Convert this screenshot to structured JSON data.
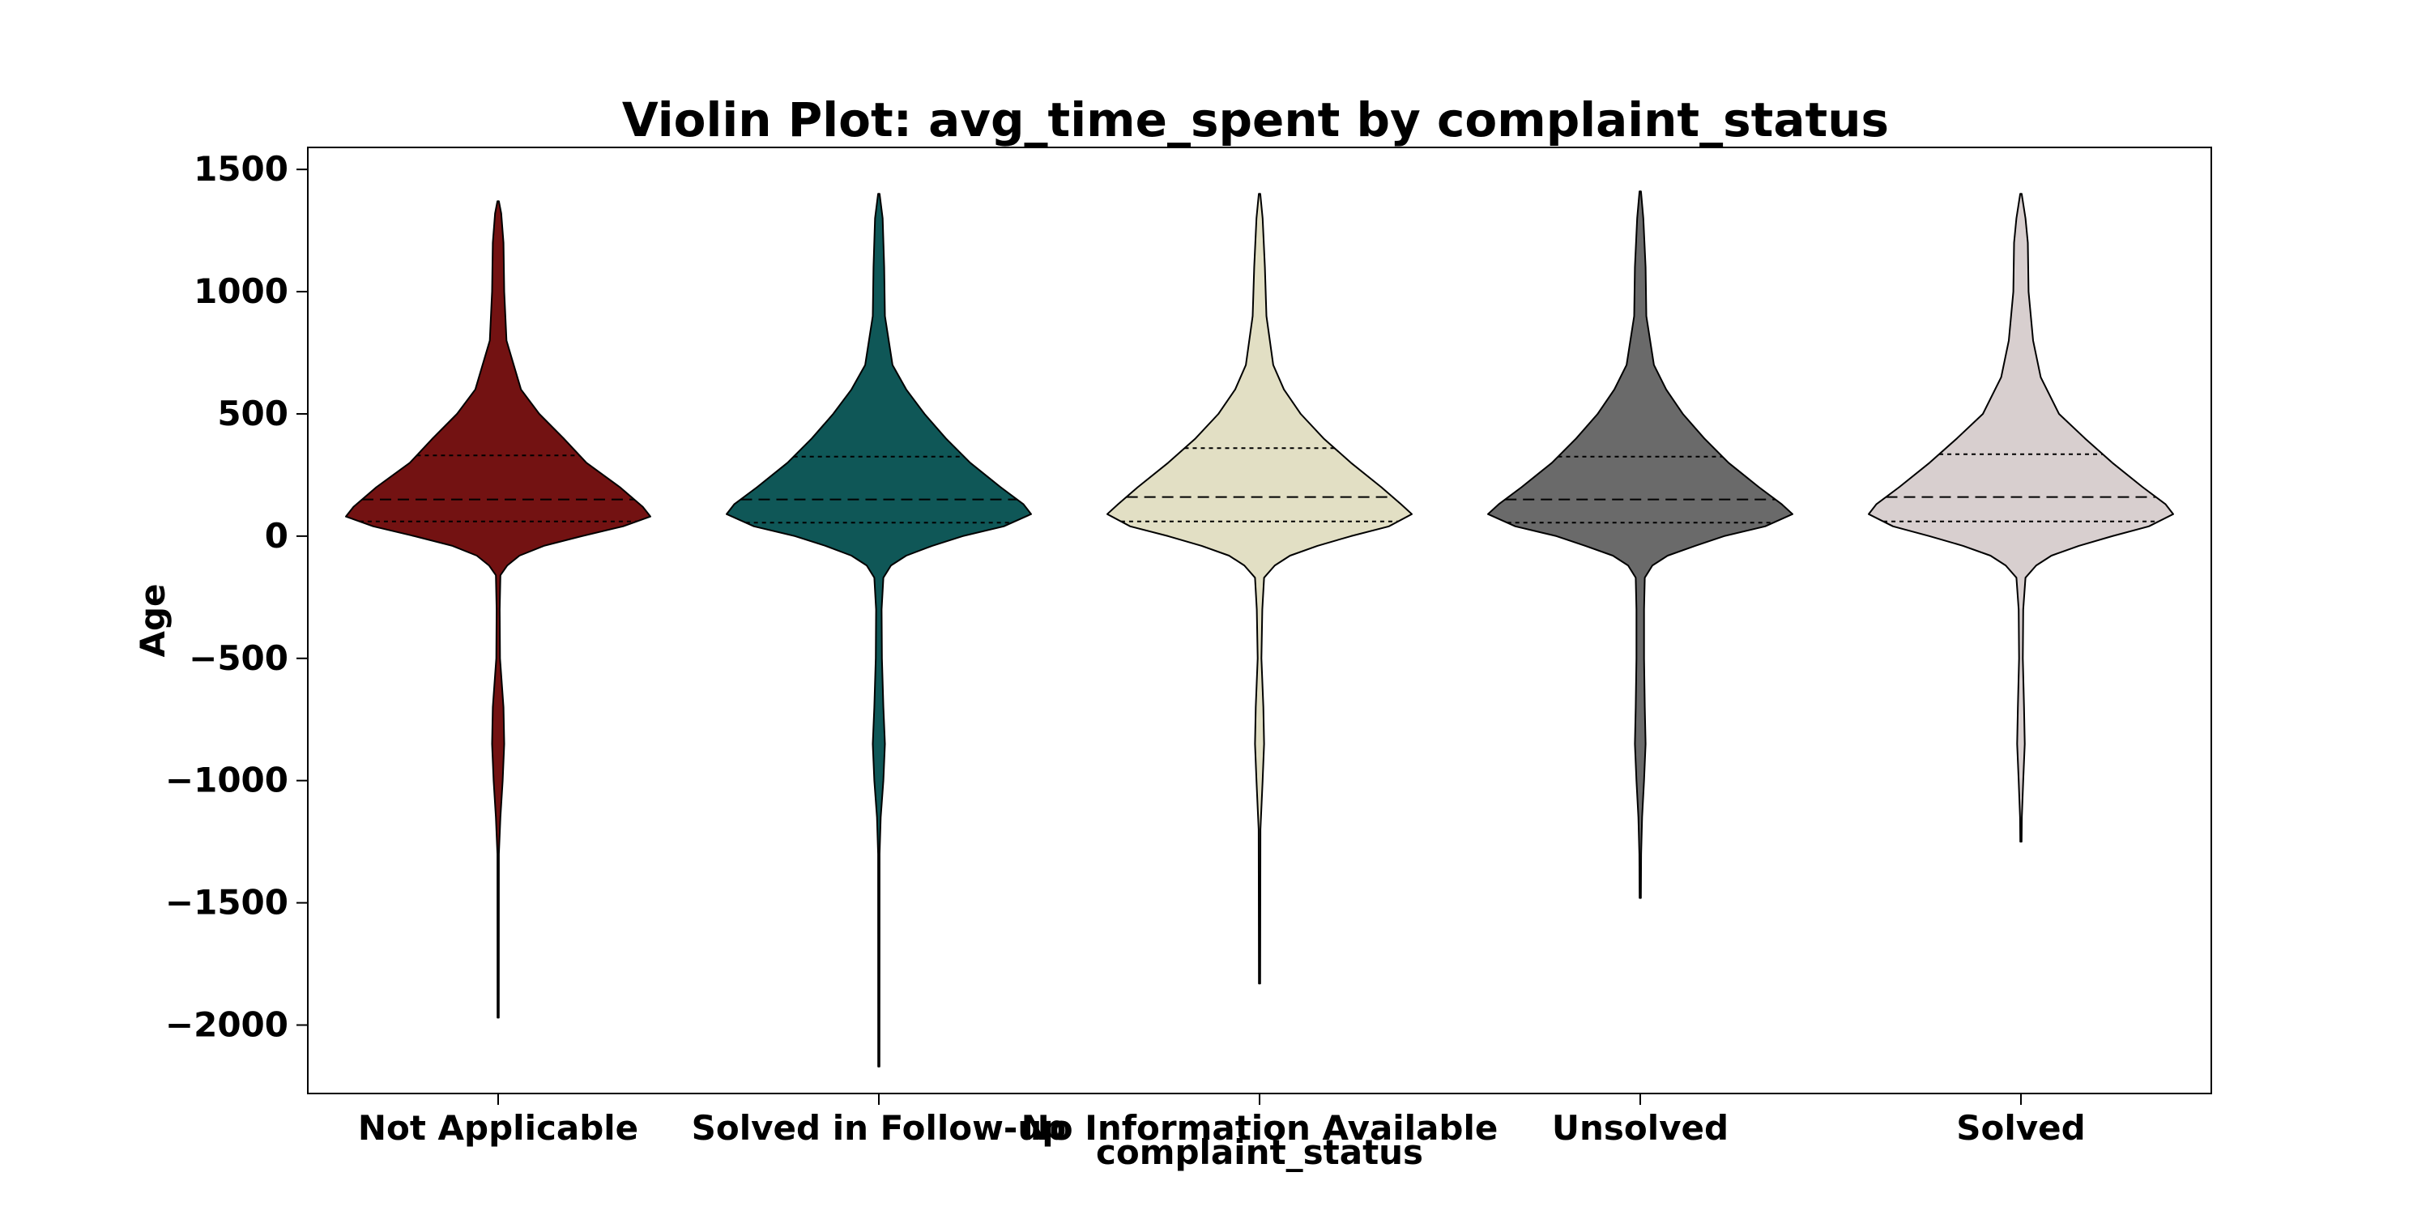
{
  "chart_data": {
    "type": "violin",
    "title": "Violin Plot: avg_time_spent by complaint_status",
    "xlabel": "complaint_status",
    "ylabel": "Age",
    "ylim": [
      -2280,
      1590
    ],
    "yticks": [
      1500,
      1000,
      500,
      0,
      -500,
      -1000,
      -1500,
      -2000
    ],
    "ytick_labels": [
      "1500",
      "1000",
      "500",
      "0",
      "−500",
      "−1000",
      "−1500",
      "−2000"
    ],
    "grid": false,
    "legend": "none",
    "categories": [
      "Not Applicable",
      "Solved in Follow-up",
      "No Information Available",
      "Unsolved",
      "Solved"
    ],
    "violins": [
      {
        "category": "Not Applicable",
        "color": "#731212",
        "max": 1370,
        "min": -1970,
        "q1": 60,
        "median": 150,
        "q3": 330,
        "profile": [
          [
            1370,
            0.005
          ],
          [
            1320,
            0.02
          ],
          [
            1200,
            0.035
          ],
          [
            1000,
            0.04
          ],
          [
            800,
            0.055
          ],
          [
            600,
            0.15
          ],
          [
            500,
            0.27
          ],
          [
            400,
            0.43
          ],
          [
            300,
            0.58
          ],
          [
            200,
            0.8
          ],
          [
            120,
            0.95
          ],
          [
            80,
            1.0
          ],
          [
            40,
            0.82
          ],
          [
            0,
            0.55
          ],
          [
            -40,
            0.3
          ],
          [
            -80,
            0.14
          ],
          [
            -120,
            0.06
          ],
          [
            -160,
            0.015
          ],
          [
            -300,
            0.01
          ],
          [
            -500,
            0.012
          ],
          [
            -700,
            0.035
          ],
          [
            -850,
            0.04
          ],
          [
            -1000,
            0.03
          ],
          [
            -1150,
            0.015
          ],
          [
            -1300,
            0.005
          ],
          [
            -1970,
            0.004
          ]
        ]
      },
      {
        "category": "Solved in Follow-up",
        "color": "#0f5757",
        "max": 1400,
        "min": -2170,
        "q1": 55,
        "median": 150,
        "q3": 325,
        "profile": [
          [
            1400,
            0.005
          ],
          [
            1300,
            0.025
          ],
          [
            1100,
            0.035
          ],
          [
            900,
            0.04
          ],
          [
            700,
            0.09
          ],
          [
            600,
            0.18
          ],
          [
            500,
            0.3
          ],
          [
            400,
            0.44
          ],
          [
            300,
            0.6
          ],
          [
            200,
            0.8
          ],
          [
            130,
            0.95
          ],
          [
            90,
            1.0
          ],
          [
            40,
            0.82
          ],
          [
            0,
            0.55
          ],
          [
            -40,
            0.35
          ],
          [
            -80,
            0.18
          ],
          [
            -120,
            0.08
          ],
          [
            -170,
            0.03
          ],
          [
            -300,
            0.018
          ],
          [
            -500,
            0.02
          ],
          [
            -700,
            0.03
          ],
          [
            -850,
            0.04
          ],
          [
            -1000,
            0.03
          ],
          [
            -1150,
            0.012
          ],
          [
            -1300,
            0.005
          ],
          [
            -2170,
            0.004
          ]
        ]
      },
      {
        "category": "No Information Available",
        "color": "#e2dfc4",
        "max": 1400,
        "min": -1830,
        "q1": 60,
        "median": 160,
        "q3": 360,
        "profile": [
          [
            1400,
            0.005
          ],
          [
            1300,
            0.02
          ],
          [
            1100,
            0.035
          ],
          [
            900,
            0.045
          ],
          [
            700,
            0.09
          ],
          [
            600,
            0.16
          ],
          [
            500,
            0.27
          ],
          [
            400,
            0.42
          ],
          [
            300,
            0.6
          ],
          [
            200,
            0.8
          ],
          [
            130,
            0.93
          ],
          [
            90,
            1.0
          ],
          [
            40,
            0.85
          ],
          [
            0,
            0.6
          ],
          [
            -40,
            0.38
          ],
          [
            -80,
            0.2
          ],
          [
            -120,
            0.1
          ],
          [
            -170,
            0.03
          ],
          [
            -300,
            0.018
          ],
          [
            -500,
            0.012
          ],
          [
            -700,
            0.025
          ],
          [
            -850,
            0.03
          ],
          [
            -1000,
            0.02
          ],
          [
            -1200,
            0.006
          ],
          [
            -1830,
            0.004
          ]
        ]
      },
      {
        "category": "Unsolved",
        "color": "#6a6a6a",
        "max": 1410,
        "min": -1480,
        "q1": 55,
        "median": 150,
        "q3": 325,
        "profile": [
          [
            1410,
            0.005
          ],
          [
            1300,
            0.02
          ],
          [
            1100,
            0.035
          ],
          [
            900,
            0.04
          ],
          [
            700,
            0.09
          ],
          [
            600,
            0.17
          ],
          [
            500,
            0.28
          ],
          [
            400,
            0.42
          ],
          [
            300,
            0.58
          ],
          [
            200,
            0.78
          ],
          [
            130,
            0.93
          ],
          [
            90,
            1.0
          ],
          [
            40,
            0.82
          ],
          [
            0,
            0.55
          ],
          [
            -40,
            0.36
          ],
          [
            -80,
            0.18
          ],
          [
            -120,
            0.08
          ],
          [
            -170,
            0.03
          ],
          [
            -300,
            0.025
          ],
          [
            -500,
            0.025
          ],
          [
            -700,
            0.03
          ],
          [
            -850,
            0.035
          ],
          [
            -1000,
            0.025
          ],
          [
            -1150,
            0.012
          ],
          [
            -1300,
            0.006
          ],
          [
            -1480,
            0.004
          ]
        ]
      },
      {
        "category": "Solved",
        "color": "#d8cfcf",
        "max": 1400,
        "min": -1250,
        "q1": 60,
        "median": 160,
        "q3": 335,
        "profile": [
          [
            1400,
            0.005
          ],
          [
            1300,
            0.03
          ],
          [
            1200,
            0.045
          ],
          [
            1000,
            0.05
          ],
          [
            800,
            0.08
          ],
          [
            650,
            0.13
          ],
          [
            500,
            0.25
          ],
          [
            400,
            0.42
          ],
          [
            300,
            0.6
          ],
          [
            200,
            0.8
          ],
          [
            130,
            0.95
          ],
          [
            90,
            1.0
          ],
          [
            40,
            0.84
          ],
          [
            0,
            0.6
          ],
          [
            -40,
            0.38
          ],
          [
            -80,
            0.2
          ],
          [
            -120,
            0.1
          ],
          [
            -170,
            0.03
          ],
          [
            -300,
            0.015
          ],
          [
            -500,
            0.012
          ],
          [
            -700,
            0.02
          ],
          [
            -850,
            0.025
          ],
          [
            -1000,
            0.015
          ],
          [
            -1150,
            0.006
          ],
          [
            -1250,
            0.004
          ]
        ]
      }
    ]
  }
}
